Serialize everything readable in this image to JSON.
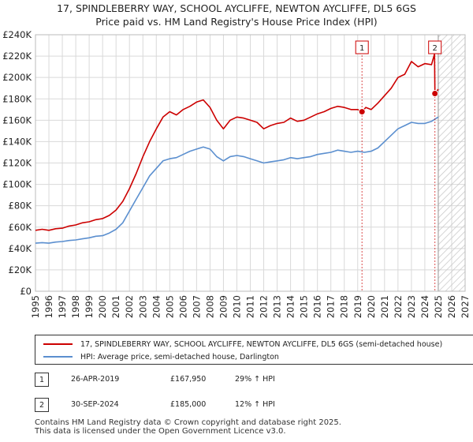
{
  "chart_data": {
    "type": "line",
    "title": "17, SPINDLEBERRY WAY, SCHOOL AYCLIFFE, NEWTON AYCLIFFE, DL5 6GS",
    "subtitle": "Price paid vs. HM Land Registry's House Price Index (HPI)",
    "ylim": [
      0,
      240000
    ],
    "xlim": [
      1995,
      2027
    ],
    "y_ticks": [
      0,
      20000,
      40000,
      60000,
      80000,
      100000,
      120000,
      140000,
      160000,
      180000,
      200000,
      220000,
      240000
    ],
    "y_tick_labels": [
      "£0",
      "£20K",
      "£40K",
      "£60K",
      "£80K",
      "£100K",
      "£120K",
      "£140K",
      "£160K",
      "£180K",
      "£200K",
      "£220K",
      "£240K"
    ],
    "x_tick_labels": [
      "1995",
      "1996",
      "1997",
      "1998",
      "1999",
      "2000",
      "2001",
      "2002",
      "2003",
      "2004",
      "2005",
      "2006",
      "2007",
      "2008",
      "2009",
      "2010",
      "2011",
      "2012",
      "2013",
      "2014",
      "2015",
      "2016",
      "2017",
      "2018",
      "2019",
      "2020",
      "2021",
      "2022",
      "2023",
      "2024",
      "2025",
      "2026",
      "2027"
    ],
    "grid": true,
    "future_hatch_from": 2025.0,
    "series": [
      {
        "name": "17, SPINDLEBERRY WAY, SCHOOL AYCLIFFE, NEWTON AYCLIFFE, DL5 6GS (semi-detached house)",
        "color": "#cc0000",
        "x": [
          1995.0,
          1995.5,
          1996.0,
          1996.5,
          1997.0,
          1997.5,
          1998.0,
          1998.5,
          1999.0,
          1999.5,
          2000.0,
          2000.5,
          2001.0,
          2001.5,
          2002.0,
          2002.5,
          2003.0,
          2003.5,
          2004.0,
          2004.5,
          2005.0,
          2005.5,
          2006.0,
          2006.5,
          2007.0,
          2007.5,
          2008.0,
          2008.5,
          2009.0,
          2009.5,
          2010.0,
          2010.5,
          2011.0,
          2011.5,
          2012.0,
          2012.5,
          2013.0,
          2013.5,
          2014.0,
          2014.5,
          2015.0,
          2015.5,
          2016.0,
          2016.5,
          2017.0,
          2017.5,
          2018.0,
          2018.5,
          2019.0,
          2019.32,
          2019.6,
          2020.0,
          2020.5,
          2021.0,
          2021.5,
          2022.0,
          2022.5,
          2023.0,
          2023.5,
          2024.0,
          2024.5,
          2024.72,
          2024.75,
          2025.0
        ],
        "values": [
          57000,
          58000,
          57000,
          58500,
          59000,
          61000,
          62000,
          64000,
          65000,
          67000,
          68000,
          71000,
          76000,
          84000,
          96000,
          110000,
          126000,
          140000,
          152000,
          163000,
          168000,
          165000,
          170000,
          173000,
          177000,
          179000,
          172000,
          160000,
          152000,
          160000,
          163000,
          162000,
          160000,
          158000,
          152000,
          155000,
          157000,
          158000,
          162000,
          159000,
          160000,
          163000,
          166000,
          168000,
          171000,
          173000,
          172000,
          170000,
          170000,
          167950,
          172000,
          170000,
          176000,
          183000,
          190000,
          200000,
          203000,
          215000,
          210000,
          213000,
          212000,
          222000,
          185000,
          189000
        ]
      },
      {
        "name": "HPI: Average price, semi-detached house, Darlington",
        "color": "#5b8fcf",
        "x": [
          1995.0,
          1995.5,
          1996.0,
          1996.5,
          1997.0,
          1997.5,
          1998.0,
          1998.5,
          1999.0,
          1999.5,
          2000.0,
          2000.5,
          2001.0,
          2001.5,
          2002.0,
          2002.5,
          2003.0,
          2003.5,
          2004.0,
          2004.5,
          2005.0,
          2005.5,
          2006.0,
          2006.5,
          2007.0,
          2007.5,
          2008.0,
          2008.5,
          2009.0,
          2009.5,
          2010.0,
          2010.5,
          2011.0,
          2011.5,
          2012.0,
          2012.5,
          2013.0,
          2013.5,
          2014.0,
          2014.5,
          2015.0,
          2015.5,
          2016.0,
          2016.5,
          2017.0,
          2017.5,
          2018.0,
          2018.5,
          2019.0,
          2019.5,
          2020.0,
          2020.5,
          2021.0,
          2021.5,
          2022.0,
          2022.5,
          2023.0,
          2023.5,
          2024.0,
          2024.5,
          2025.0
        ],
        "values": [
          45000,
          45500,
          45000,
          46000,
          46500,
          47500,
          48000,
          49000,
          50000,
          51500,
          52000,
          54500,
          58000,
          64000,
          75000,
          86000,
          97000,
          108000,
          115000,
          122000,
          124000,
          125000,
          128000,
          131000,
          133000,
          135000,
          133000,
          126000,
          122000,
          126000,
          127000,
          126000,
          124000,
          122000,
          120000,
          121000,
          122000,
          123000,
          125000,
          124000,
          125000,
          126000,
          128000,
          129000,
          130000,
          132000,
          131000,
          130000,
          131000,
          130000,
          131000,
          134000,
          140000,
          146000,
          152000,
          155000,
          158000,
          157000,
          157000,
          159000,
          163000
        ]
      }
    ],
    "sales": [
      {
        "marker": "1",
        "x": 2019.32,
        "value": 167950,
        "date": "26-APR-2019",
        "price": "£167,950",
        "hpi_change": "29% ↑ HPI"
      },
      {
        "marker": "2",
        "x": 2024.75,
        "value": 185000,
        "date": "30-SEP-2024",
        "price": "£185,000",
        "hpi_change": "12% ↑ HPI"
      }
    ]
  },
  "legend": {
    "property_label": "17, SPINDLEBERRY WAY, SCHOOL AYCLIFFE, NEWTON AYCLIFFE, DL5 6GS (semi-detached house)",
    "hpi_label": "HPI: Average price, semi-detached house, Darlington"
  },
  "footer": {
    "line1": "Contains HM Land Registry data © Crown copyright and database right 2025.",
    "line2": "This data is licensed under the Open Government Licence v3.0."
  }
}
